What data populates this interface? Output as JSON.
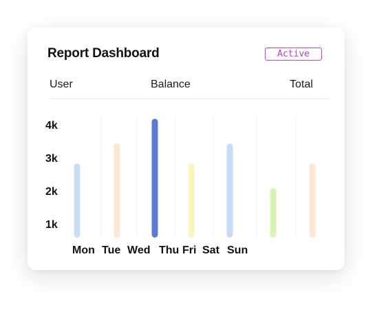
{
  "header": {
    "title": "Report Dashboard",
    "status_badge": "Active"
  },
  "columns": {
    "user": "User",
    "balance": "Balance",
    "total": "Total"
  },
  "colors": {
    "badge": "#c03fd3",
    "bars": [
      "#c9dcf7",
      "#fde6d6",
      "#5b7bd0",
      "#f8f5bf",
      "#c9dcf7",
      "#d7f3b6",
      "#fde6d6"
    ]
  },
  "chart_data": {
    "type": "bar",
    "categories": [
      "Mon",
      "Tue",
      "Wed",
      "Thu",
      "Fri",
      "Sat",
      "Sun"
    ],
    "values": [
      2900,
      3500,
      4250,
      2900,
      3500,
      2150,
      2900
    ],
    "y_ticks": [
      "4k",
      "3k",
      "2k",
      "1k"
    ],
    "ylim": [
      650,
      4300
    ],
    "grid": true
  }
}
